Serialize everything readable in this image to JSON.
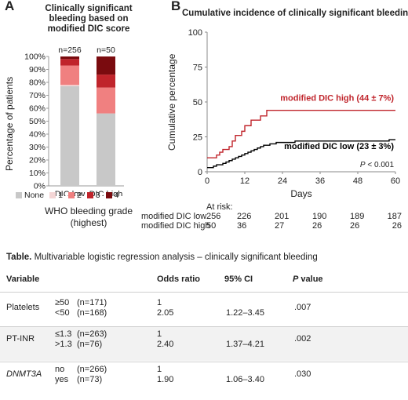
{
  "panel_a": {
    "letter": "A",
    "title": "Clinically significant bleeding based on modified DIC score",
    "ylabel": "Percentage of patients",
    "xlabel": "WHO bleeding grade",
    "xlabel2": "(highest)",
    "legend_title": "None",
    "colors": {
      "None": "#c8c8c8",
      "1": "#f4d6d6",
      "2": "#f08080",
      "3": "#c0242b",
      "4": "#7a0b0f"
    }
  },
  "panel_b": {
    "letter": "B",
    "title": "Cumulative incidence of clinically significant bleeding",
    "ylabel": "Cumulative percentage",
    "xlabel": "Days",
    "pvalue": "P < 0.001",
    "label_high": "modified DIC high (44 ± 7%)",
    "label_low": "modified DIC low (23 ± 3%)",
    "colors": {
      "high": "#c0242b",
      "low": "#000000"
    }
  },
  "risk_table": {
    "header": "At risk:",
    "rows": [
      {
        "label": "modified DIC low",
        "values": [
          "256",
          "226",
          "201",
          "190",
          "189",
          "187"
        ]
      },
      {
        "label": "modified DIC high",
        "values": [
          "50",
          "36",
          "27",
          "26",
          "26",
          "26"
        ]
      }
    ]
  },
  "chart_data": [
    {
      "type": "bar",
      "stacked": true,
      "title": "Clinically significant bleeding based on modified DIC score",
      "categories": [
        "DIC low",
        "DIC high"
      ],
      "group_labels": [
        "n=256",
        "n=50"
      ],
      "ylabel": "Percentage of patients",
      "ylim": [
        0,
        100
      ],
      "yticks": [
        "0%",
        "10%",
        "20%",
        "30%",
        "40%",
        "50%",
        "60%",
        "70%",
        "80%",
        "90%",
        "100%"
      ],
      "xlabel": "WHO bleeding grade (highest)",
      "legend": "bottom",
      "series": [
        {
          "name": "None",
          "values": [
            77,
            56
          ]
        },
        {
          "name": "1",
          "values": [
            1,
            0
          ]
        },
        {
          "name": "2",
          "values": [
            15,
            20
          ]
        },
        {
          "name": "3",
          "values": [
            5,
            10
          ]
        },
        {
          "name": "4",
          "values": [
            2,
            14
          ]
        }
      ]
    },
    {
      "type": "line",
      "step": true,
      "title": "Cumulative incidence of clinically significant bleeding",
      "xlabel": "Days",
      "ylabel": "Cumulative percentage",
      "xlim": [
        0,
        60
      ],
      "ylim": [
        0,
        100
      ],
      "xticks": [
        0,
        12,
        24,
        36,
        48,
        60
      ],
      "yticks": [
        0,
        25,
        50,
        75,
        100
      ],
      "series": [
        {
          "name": "modified DIC high (44 ± 7%)",
          "x": [
            0,
            1,
            3,
            4,
            5,
            7,
            8,
            9,
            11,
            12,
            14,
            17,
            18,
            19,
            60
          ],
          "y": [
            10,
            10,
            12,
            14,
            16,
            18,
            22,
            26,
            29,
            33,
            37,
            40,
            40,
            44,
            44
          ]
        },
        {
          "name": "modified DIC low (23 ± 3%)",
          "x": [
            0,
            1,
            2,
            3,
            4,
            5,
            6,
            7,
            8,
            9,
            10,
            11,
            12,
            13,
            14,
            15,
            16,
            17,
            18,
            20,
            22,
            24,
            26,
            28,
            35,
            48,
            52,
            58,
            60
          ],
          "y": [
            3,
            3,
            4,
            5,
            5,
            6,
            7,
            8,
            9,
            10,
            11,
            12,
            13,
            14,
            15,
            16,
            17,
            18,
            19,
            20,
            21,
            21,
            21,
            22,
            22,
            22,
            22,
            23,
            23
          ]
        }
      ]
    }
  ],
  "table": {
    "title_bold": "Table.",
    "title_rest": " Multivariable logistic regression analysis – clinically significant bleeding",
    "headers": {
      "variable": "Variable",
      "odds": "Odds ratio",
      "ci": "95% CI",
      "p": "P value"
    },
    "rows": [
      {
        "variable": "Platelets",
        "italic": false,
        "levels": [
          "≥50",
          "<50"
        ],
        "ns": [
          "(n=171)",
          "(n=168)"
        ],
        "odds": [
          "1",
          "2.05"
        ],
        "ci": "1.22–3.45",
        "p": ".007"
      },
      {
        "variable": "PT-INR",
        "italic": false,
        "levels": [
          "≤1.3",
          ">1.3"
        ],
        "ns": [
          "(n=263)",
          "(n=76)"
        ],
        "odds": [
          "1",
          "2.40"
        ],
        "ci": "1.37–4.21",
        "p": ".002"
      },
      {
        "variable": "DNMT3A",
        "italic": true,
        "levels": [
          "no",
          "yes"
        ],
        "ns": [
          "(n=266)",
          "(n=73)"
        ],
        "odds": [
          "1",
          "1.90"
        ],
        "ci": "1.06–3.40",
        "p": ".030"
      }
    ]
  }
}
